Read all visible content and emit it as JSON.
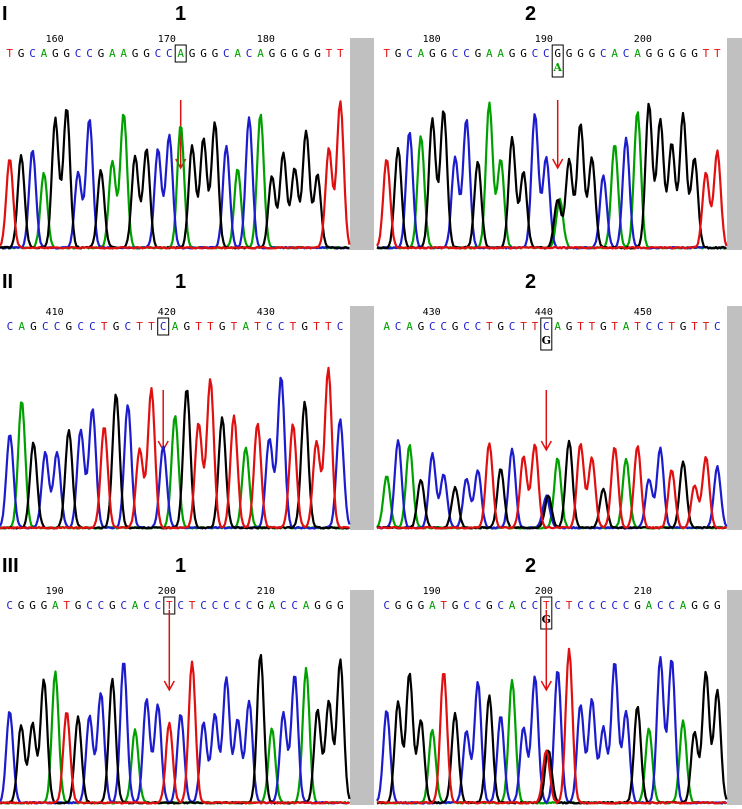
{
  "colors": {
    "A": "#00a000",
    "C": "#1c1ccc",
    "G": "#000000",
    "T": "#e01010",
    "arrow": "#e01010",
    "scroll_gray": "#c0c0c0"
  },
  "rows": [
    {
      "label": "I",
      "panels": [
        {
          "label": "1",
          "positions": [
            "160",
            "170",
            "180"
          ],
          "sequence": "TGCAGGCCGAAGGCCAGGGCACAGGGGGTT",
          "boxed_index": 15,
          "secondary_base": "",
          "seed": 11
        },
        {
          "label": "2",
          "positions": [
            "180",
            "190",
            "200"
          ],
          "sequence": "TGCAGGCCGAAGGCCGGGGCACAGGGGGTT",
          "boxed_index": 15,
          "secondary_base": "A",
          "seed": 23
        }
      ]
    },
    {
      "label": "II",
      "panels": [
        {
          "label": "1",
          "positions": [
            "410",
            "420",
            "430"
          ],
          "sequence": "CAGCCGCCTGCTTCAGTTGTATCCTGTTC",
          "boxed_index": 13,
          "secondary_base": "",
          "seed": 37
        },
        {
          "label": "2",
          "positions": [
            "430",
            "440",
            "450"
          ],
          "sequence": "ACAGCCGCCTGCTTCAGTTGTATCCTGTTC",
          "boxed_index": 14,
          "secondary_base": "G",
          "seed": 41
        }
      ]
    },
    {
      "label": "III",
      "panels": [
        {
          "label": "1",
          "positions": [
            "190",
            "200",
            "210"
          ],
          "sequence": "CGGGATGCCGCACCTCTCCCCCGACCAGGG",
          "boxed_index": 14,
          "secondary_base": "",
          "seed": 53
        },
        {
          "label": "2",
          "positions": [
            "190",
            "200",
            "210"
          ],
          "sequence": "CGGGATGCCGCACCTCTCCCCCGACCAGGG",
          "boxed_index": 14,
          "secondary_base": "G",
          "seed": 67
        }
      ]
    }
  ]
}
